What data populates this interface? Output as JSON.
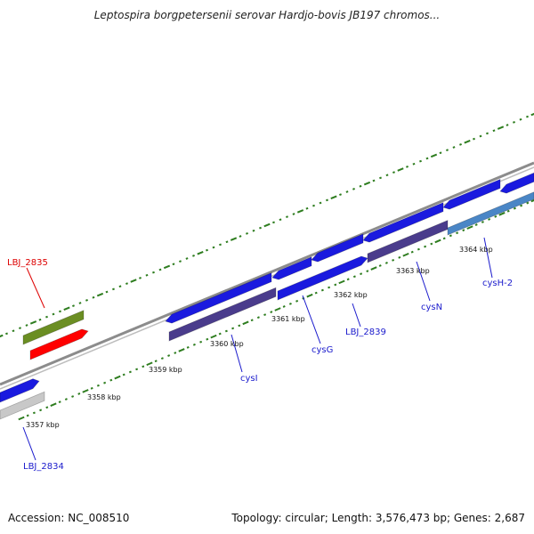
{
  "title": "Leptospira borgpetersenii serovar Hardjo-bovis JB197 chromos...",
  "footer": {
    "accession": "Accession: NC_008510",
    "topology": "Topology: circular; Length: 3,576,473 bp; Genes: 2,687"
  },
  "colors": {
    "backbone": "#8c8c8c",
    "tick": "#2e7d1f",
    "cds": "#1a1adf",
    "cds_dark": "#4a3c8c",
    "cds_light": "#4a86c6",
    "green_feature": "#6b8e23",
    "red_feature": "#ff0000",
    "grey_feature": "#c8c8c8",
    "label_blue": "#1a1acc",
    "label_red": "#dd0000"
  },
  "tick_labels": [
    "3357 kbp",
    "3358 kbp",
    "3359 kbp",
    "3360 kbp",
    "3361 kbp",
    "3362 kbp",
    "3363 kbp",
    "3364 kbp"
  ],
  "gene_labels": [
    "LBJ_2835",
    "LBJ_2834",
    "cysI",
    "cysG",
    "LBJ_2839",
    "cysN",
    "cysH-2"
  ],
  "icons": {
    "feature": "arrow-shape",
    "backbone": "double-line"
  }
}
